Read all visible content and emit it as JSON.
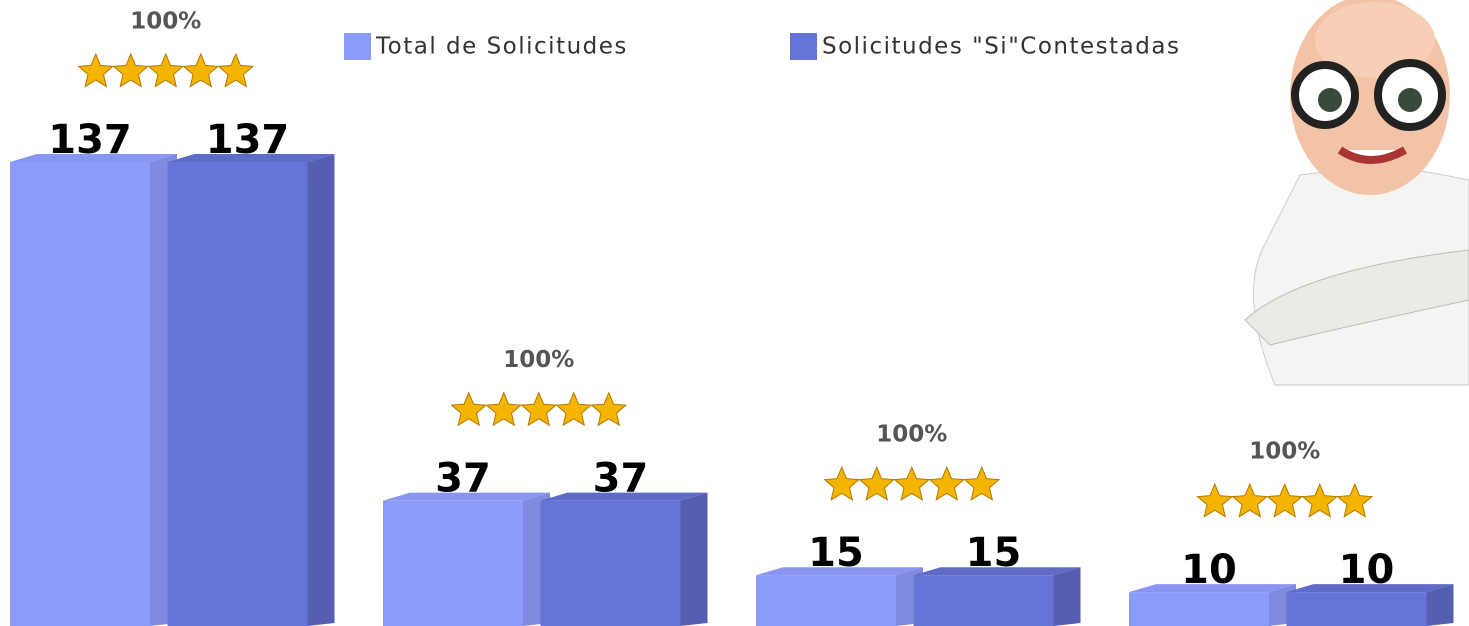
{
  "chart_data": {
    "type": "bar3d",
    "categories": [
      null,
      null,
      null,
      null
    ],
    "series": [
      {
        "name": "Total de Solicitudes",
        "color": "#8c9bf9",
        "values": [
          137,
          37,
          15,
          10
        ]
      },
      {
        "name": "Solicitudes \"Si\"Contestadas",
        "color": "#6674d8",
        "values": [
          137,
          37,
          15,
          10
        ]
      }
    ],
    "annotations": [
      "100%",
      "100%",
      "100%",
      "100%"
    ]
  }
}
